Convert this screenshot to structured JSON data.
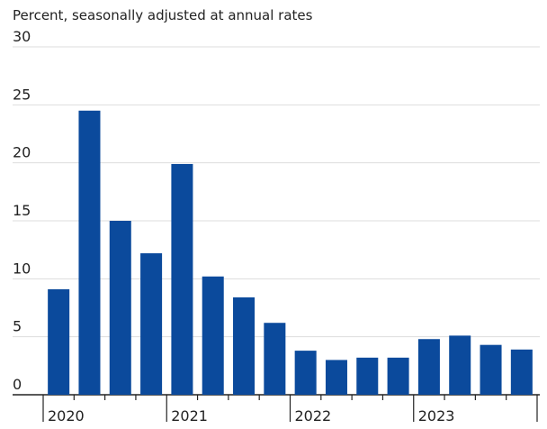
{
  "chart_data": {
    "type": "bar",
    "subtitle": "Percent, seasonally adjusted at annual rates",
    "categories": [
      null,
      null,
      null,
      null,
      null,
      null,
      null,
      null,
      null,
      null,
      null,
      null,
      null,
      null,
      null,
      null
    ],
    "x_groups": [
      "2020",
      "2021",
      "2022",
      "2023"
    ],
    "values": [
      9.1,
      24.5,
      15.0,
      12.2,
      19.9,
      10.2,
      8.4,
      6.2,
      3.8,
      3.0,
      3.2,
      3.2,
      4.8,
      5.1,
      4.3,
      3.9
    ],
    "color": "#0b4a9c",
    "ylim": [
      0,
      30
    ],
    "yticks": [
      0,
      5,
      10,
      15,
      20,
      25,
      30
    ],
    "grid": true
  }
}
